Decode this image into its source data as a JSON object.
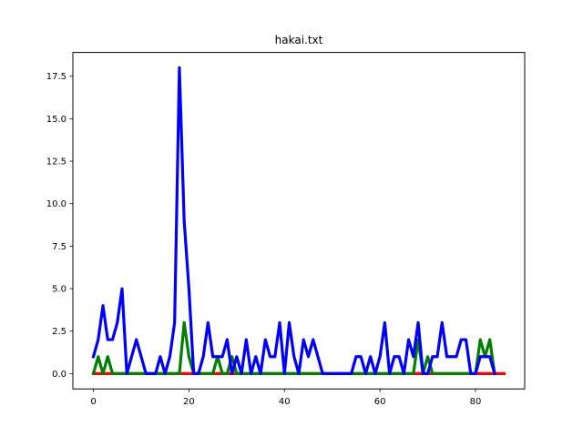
{
  "chart_data": {
    "type": "line",
    "title": "hakai.txt",
    "xlabel": "",
    "ylabel": "",
    "xlim": [
      -4.3,
      90.3
    ],
    "ylim": [
      -0.9,
      18.9
    ],
    "xticks": [
      0,
      20,
      40,
      60,
      80
    ],
    "yticks": [
      0.0,
      2.5,
      5.0,
      7.5,
      10.0,
      12.5,
      15.0,
      17.5
    ],
    "xtick_labels": [
      "0",
      "20",
      "40",
      "60",
      "80"
    ],
    "ytick_labels": [
      "0.0",
      "2.5",
      "5.0",
      "7.5",
      "10.0",
      "12.5",
      "15.0",
      "17.5"
    ],
    "grid": false,
    "series": [
      {
        "color": "#ff0000",
        "x": [
          0,
          86
        ],
        "y": [
          0,
          0
        ]
      },
      {
        "color": "#008000",
        "x": [
          0,
          1,
          2,
          3,
          4,
          5,
          16,
          17,
          18,
          19,
          20,
          21,
          24,
          25,
          26,
          27,
          28,
          29,
          30,
          67,
          68,
          69,
          70,
          71,
          80,
          81,
          82,
          83,
          84
        ],
        "y": [
          0,
          1,
          0,
          1,
          0,
          0,
          0,
          0,
          0,
          3,
          1,
          0,
          0,
          0,
          1,
          0,
          0,
          1,
          0,
          0,
          2,
          0,
          1,
          0,
          0,
          2,
          1,
          2,
          0
        ]
      },
      {
        "color": "#0000ff",
        "x": [
          0,
          1,
          2,
          3,
          4,
          5,
          6,
          7,
          8,
          9,
          10,
          11,
          12,
          13,
          14,
          15,
          16,
          17,
          18,
          19,
          20,
          21,
          22,
          23,
          24,
          25,
          26,
          27,
          28,
          29,
          30,
          31,
          32,
          33,
          34,
          35,
          36,
          37,
          38,
          39,
          40,
          41,
          42,
          43,
          44,
          45,
          46,
          47,
          48,
          49,
          50,
          51,
          52,
          53,
          54,
          55,
          56,
          57,
          58,
          59,
          60,
          61,
          62,
          63,
          64,
          65,
          66,
          67,
          68,
          69,
          70,
          71,
          72,
          73,
          74,
          75,
          76,
          77,
          78,
          79,
          80,
          81,
          82,
          83,
          84
        ],
        "y": [
          1,
          2,
          4,
          2,
          2,
          3,
          5,
          0,
          1,
          2,
          1,
          0,
          0,
          0,
          1,
          0,
          1,
          3,
          18,
          9,
          5,
          0,
          0,
          1,
          3,
          1,
          1,
          1,
          2,
          0,
          1,
          0,
          2,
          0,
          1,
          0,
          2,
          1,
          1,
          3,
          0,
          3,
          1,
          0,
          2,
          1,
          2,
          1,
          0,
          0,
          0,
          0,
          0,
          0,
          0,
          1,
          1,
          0,
          1,
          0,
          1,
          3,
          0,
          1,
          1,
          0,
          2,
          1,
          3,
          0,
          0,
          1,
          1,
          3,
          1,
          1,
          1,
          2,
          2,
          0,
          0,
          1,
          1,
          1,
          0
        ]
      }
    ]
  }
}
